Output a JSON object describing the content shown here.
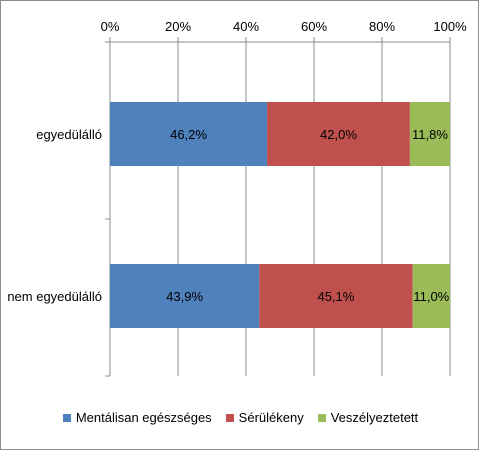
{
  "chart_data": {
    "type": "bar",
    "orientation": "horizontal",
    "stacked": "percent",
    "categories": [
      "egyedülálló",
      "nem egyedülálló"
    ],
    "series": [
      {
        "name": "Mentálisan egészséges",
        "color": "#4f81bd",
        "values": [
          46.2,
          43.9
        ],
        "labels": [
          "46,2%",
          "43,9%"
        ]
      },
      {
        "name": "Sérülékeny",
        "color": "#c0504d",
        "values": [
          42.0,
          45.1
        ],
        "labels": [
          "42,0%",
          "45,1%"
        ]
      },
      {
        "name": "Veszélyeztetett",
        "color": "#9bbb59",
        "values": [
          11.8,
          11.0
        ],
        "labels": [
          "11,8%",
          "11,0%"
        ]
      }
    ],
    "x_ticks": [
      "0%",
      "20%",
      "40%",
      "60%",
      "80%",
      "100%"
    ],
    "xlim": [
      0,
      100
    ],
    "grid": true,
    "legend_position": "bottom"
  }
}
